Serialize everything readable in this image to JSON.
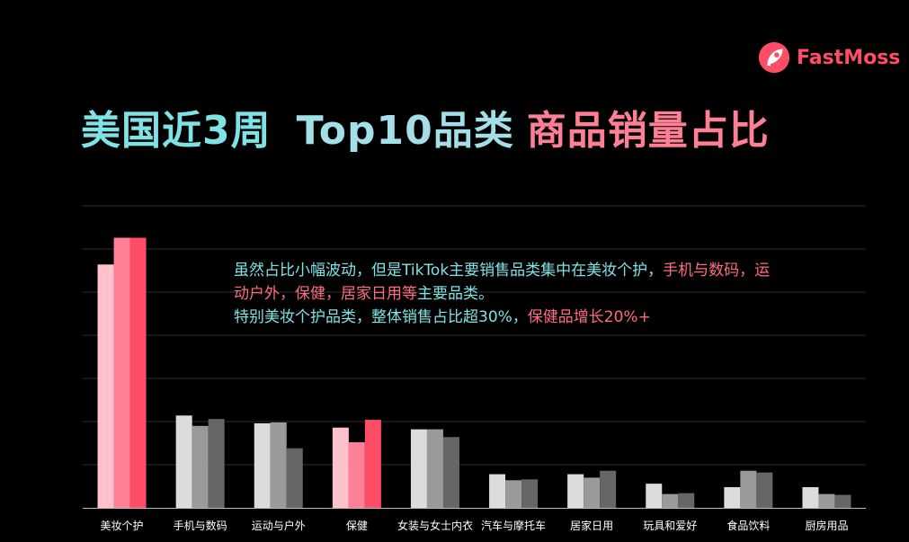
{
  "brand": {
    "name": "FastMoss",
    "logo_icon": "rocket-badge-icon",
    "color": "#ff4d66"
  },
  "title": {
    "part1": "美国近3周",
    "part2": "Top10品类",
    "part3": "商品销量占比"
  },
  "annotation": {
    "seg1": "虽然占比小幅波动，但是TikTok主要销售品类集中在美妆个护，",
    "seg2": "手机与数码，运",
    "seg3": "动户外，保健，居家日用等",
    "seg4": "主要品类。",
    "seg5": "特别美妆个护品类，整体销售占比超30%，",
    "seg6": "保健品增长20%+"
  },
  "chart_data": {
    "type": "bar",
    "categories": [
      "美妆个护",
      "手机与数码",
      "运动与户外",
      "保健",
      "女装与女士内衣",
      "汽车与摩托车",
      "居家日用",
      "玩具和爱好",
      "食品饮料",
      "厨房用品"
    ],
    "series": [
      {
        "values": [
          28.2,
          10.7,
          9.8,
          9.3,
          9.1,
          3.9,
          3.9,
          2.8,
          2.4,
          2.4
        ]
      },
      {
        "values": [
          31.3,
          9.5,
          9.9,
          7.6,
          9.1,
          3.2,
          3.5,
          1.6,
          4.3,
          1.6
        ]
      },
      {
        "values": [
          31.3,
          10.3,
          6.9,
          10.2,
          8.2,
          3.3,
          4.3,
          1.7,
          4.1,
          1.5
        ]
      }
    ],
    "highlight_categories": [
      "美妆个护",
      "保健"
    ],
    "colors": {
      "normal": [
        "#dcdcdc",
        "#9a9a9a",
        "#666666"
      ],
      "highlight": [
        "#ffc1cc",
        "#ff8096",
        "#ff4d66"
      ],
      "grid": "#2e2e2e",
      "axis": "#bbbbbb",
      "tick_label": "#ffffff"
    },
    "ylim": [
      0,
      35
    ],
    "grid": true,
    "gridline_step": 5,
    "legend": "none"
  }
}
